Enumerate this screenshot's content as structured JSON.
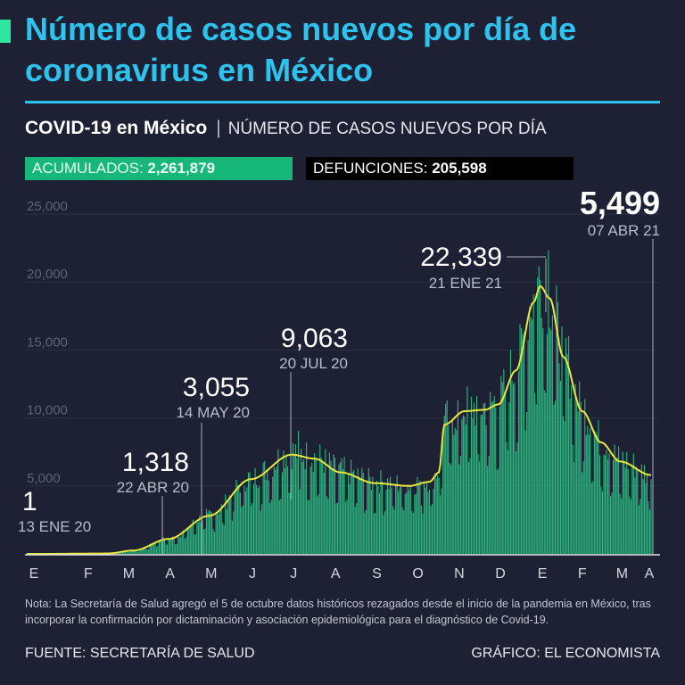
{
  "title": "Número de casos nuevos por día de coronavirus en México",
  "subtitle": {
    "bold": "COVID-19 en México",
    "light": "NÚMERO DE CASOS NUEVOS POR DÍA"
  },
  "badges": {
    "acumulados_label": "ACUMULADOS:",
    "acumulados_value": "2,261,879",
    "defunciones_label": "DEFUNCIONES:",
    "defunciones_value": "205,598"
  },
  "colors": {
    "background": "#1d2133",
    "title": "#2ec3ee",
    "bars": "#2fd48f",
    "trend": "#e8e83a",
    "accent_green": "#17b77a"
  },
  "chart_data": {
    "type": "bar",
    "ylim": [
      0,
      25000
    ],
    "yticks": [
      5000,
      10000,
      15000,
      20000,
      25000
    ],
    "ytick_labels": [
      "5,000",
      "10,000",
      "15,000",
      "20,000",
      "25,000"
    ],
    "x_months": [
      "E",
      "F",
      "M",
      "A",
      "M",
      "J",
      "J",
      "A",
      "S",
      "O",
      "N",
      "D",
      "E",
      "F",
      "M",
      "A"
    ],
    "x_start": "2020-01-01",
    "x_end": "2021-04-07",
    "trend_points": [
      [
        "2020-01-13",
        0
      ],
      [
        "2020-03-01",
        30
      ],
      [
        "2020-03-20",
        250
      ],
      [
        "2020-04-15",
        1100
      ],
      [
        "2020-05-15",
        2800
      ],
      [
        "2020-06-15",
        5500
      ],
      [
        "2020-07-15",
        7300
      ],
      [
        "2020-08-01",
        7000
      ],
      [
        "2020-08-20",
        6000
      ],
      [
        "2020-09-15",
        5200
      ],
      [
        "2020-10-10",
        5000
      ],
      [
        "2020-10-25",
        5300
      ],
      [
        "2020-11-01",
        6000
      ],
      [
        "2020-11-05",
        9500
      ],
      [
        "2020-11-20",
        10500
      ],
      [
        "2020-12-05",
        10600
      ],
      [
        "2020-12-15",
        11000
      ],
      [
        "2020-12-28",
        13500
      ],
      [
        "2021-01-10",
        18500
      ],
      [
        "2021-01-15",
        19700
      ],
      [
        "2021-01-22",
        18800
      ],
      [
        "2021-02-01",
        14500
      ],
      [
        "2021-02-15",
        10500
      ],
      [
        "2021-03-01",
        8200
      ],
      [
        "2021-03-15",
        6800
      ],
      [
        "2021-04-07",
        5800
      ]
    ],
    "annotations": [
      {
        "value": "1",
        "date_label": "13 ENE 20",
        "date": "2020-01-13",
        "y": 1
      },
      {
        "value": "1,318",
        "date_label": "22 ABR 20",
        "date": "2020-04-22",
        "y": 1318
      },
      {
        "value": "3,055",
        "date_label": "14 MAY 20",
        "date": "2020-05-14",
        "y": 3055
      },
      {
        "value": "9,063",
        "date_label": "20 JUL 20",
        "date": "2020-07-20",
        "y": 9063
      },
      {
        "value": "22,339",
        "date_label": "21 ENE 21",
        "date": "2021-01-21",
        "y": 22339
      },
      {
        "value": "5,499",
        "date_label": "07 ABR 21",
        "date": "2021-04-07",
        "y": 5499
      }
    ]
  },
  "note": "Nota: La Secretaría de Salud agregó el 5 de octubre datos históricos rezagados desde el inicio de la pandemia en México, tras incorporar la confirmación por dictaminación y asociación epidemiológica para el diagnóstico de Covid-19.",
  "footer": {
    "source": "FUENTE: SECRETARÍA DE SALUD",
    "credit": "GRÁFICO: EL ECONOMISTA"
  }
}
